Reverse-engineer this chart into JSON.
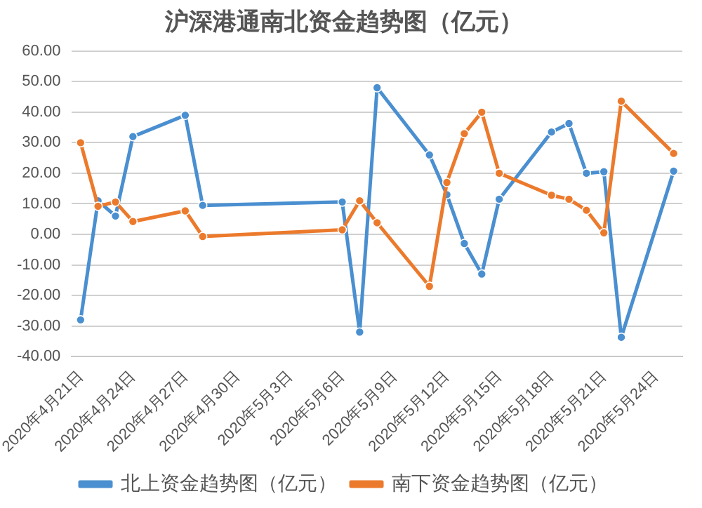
{
  "chart_data": {
    "type": "line",
    "title": "沪深港通南北资金趋势图（亿元）",
    "x": [
      "2020-04-21",
      "2020-04-22",
      "2020-04-23",
      "2020-04-24",
      "2020-04-27",
      "2020-04-28",
      "2020-05-06",
      "2020-05-07",
      "2020-05-08",
      "2020-05-11",
      "2020-05-12",
      "2020-05-13",
      "2020-05-14",
      "2020-05-15",
      "2020-05-18",
      "2020-05-19",
      "2020-05-20",
      "2020-05-21",
      "2020-05-22",
      "2020-05-25"
    ],
    "series": [
      {
        "name": "北上资金趋势图（亿元）",
        "color": "#4a8fd0",
        "values": [
          -28,
          11,
          6,
          32,
          39,
          9.5,
          10.6,
          -32,
          48,
          26,
          13,
          -3,
          -13,
          11.5,
          33.5,
          36.3,
          20,
          20.5,
          -33.7,
          20.7
        ]
      },
      {
        "name": "南下资金趋势图（亿元）",
        "color": "#ec7a2c",
        "values": [
          30,
          9.2,
          10.6,
          4.2,
          7.7,
          -0.7,
          1.5,
          11,
          3.8,
          -17,
          17,
          33,
          40,
          20,
          12.8,
          11.5,
          7.9,
          0.5,
          43.6,
          26.5
        ]
      }
    ],
    "xlim": [
      "2020-04-20T12:00",
      "2020-05-25T12:00"
    ],
    "xticks": [
      {
        "value": "2020-04-21",
        "label": "2020年4月21日"
      },
      {
        "value": "2020-04-24",
        "label": "2020年4月24日"
      },
      {
        "value": "2020-04-27",
        "label": "2020年4月27日"
      },
      {
        "value": "2020-04-30",
        "label": "2020年4月30日"
      },
      {
        "value": "2020-05-03",
        "label": "2020年5月3日"
      },
      {
        "value": "2020-05-06",
        "label": "2020年5月6日"
      },
      {
        "value": "2020-05-09",
        "label": "2020年5月9日"
      },
      {
        "value": "2020-05-12",
        "label": "2020年5月12日"
      },
      {
        "value": "2020-05-15",
        "label": "2020年5月15日"
      },
      {
        "value": "2020-05-18",
        "label": "2020年5月18日"
      },
      {
        "value": "2020-05-21",
        "label": "2020年5月21日"
      },
      {
        "value": "2020-05-24",
        "label": "2020年5月24日"
      }
    ],
    "ylim": [
      -40,
      60
    ],
    "yticks": [
      {
        "value": -40,
        "label": "-40.00"
      },
      {
        "value": -30,
        "label": "-30.00"
      },
      {
        "value": -20,
        "label": "-20.00"
      },
      {
        "value": -10,
        "label": "-10.00"
      },
      {
        "value": 0,
        "label": "0.00"
      },
      {
        "value": 10,
        "label": "10.00"
      },
      {
        "value": 20,
        "label": "20.00"
      },
      {
        "value": 30,
        "label": "30.00"
      },
      {
        "value": 40,
        "label": "40.00"
      },
      {
        "value": 50,
        "label": "50.00"
      },
      {
        "value": 60,
        "label": "60.00"
      }
    ],
    "grid": "y",
    "legend": "bottom",
    "marker": "circle",
    "line_style": "solid"
  }
}
